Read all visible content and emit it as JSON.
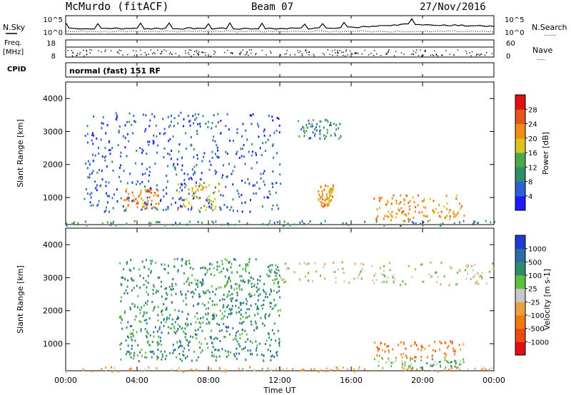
{
  "header": {
    "station": "McMurdo (fitACF)",
    "beam": "Beam 07",
    "date": "27/Nov/2016"
  },
  "side_labels": {
    "nsky": "N.Sky",
    "freq": "Freq.",
    "freq_unit": "[MHz]",
    "cpid": "CPID",
    "nsearch": "N.Search",
    "nave": "Nave",
    "dots": "......",
    "nave_dots": "...."
  },
  "noise_panel": {
    "left_ticks": [
      "10^5",
      "10^0"
    ],
    "right_ticks": [
      "10^5",
      "10^0"
    ]
  },
  "freq_panel": {
    "left_ticks": [
      "18",
      "8"
    ],
    "right_ticks": [
      "60",
      "0"
    ]
  },
  "cpid_panel": {
    "text": "normal (fast) 151 RF"
  },
  "x_axis": {
    "label": "Time UT",
    "ticks": [
      "00:00",
      "04:00",
      "08:00",
      "12:00",
      "16:00",
      "20:00",
      "00:00"
    ]
  },
  "chart_data": [
    {
      "type": "heatmap",
      "title": "Power",
      "ylabel": "Slant Range [km]",
      "xlabel": "",
      "ylim": [
        180,
        4500
      ],
      "xlim": [
        0,
        24
      ],
      "y_ticks": [
        "1000",
        "2000",
        "3000",
        "4000"
      ],
      "colorbar": {
        "label": "Power [dB]",
        "ticks": [
          "4",
          "8",
          "12",
          "16",
          "20",
          "24",
          "28"
        ],
        "range": [
          0,
          30
        ],
        "colors": [
          "#1c1cff",
          "#2f5fd0",
          "#2f8d6a",
          "#4aa84a",
          "#d9c41d",
          "#ef8d16",
          "#e5551e",
          "#e01010"
        ]
      },
      "regions": [
        {
          "t0": 0.0,
          "t1": 24.0,
          "r0": 180,
          "r1": 320,
          "level": 2
        },
        {
          "t0": 3.2,
          "t1": 5.2,
          "r0": 700,
          "r1": 1300,
          "level": 5
        },
        {
          "t0": 6.2,
          "t1": 8.6,
          "r0": 600,
          "r1": 1500,
          "level": 4
        },
        {
          "t0": 14.1,
          "t1": 15.0,
          "r0": 750,
          "r1": 1400,
          "level": 5
        },
        {
          "t0": 17.2,
          "t1": 22.3,
          "r0": 300,
          "r1": 1100,
          "level": 5
        },
        {
          "t0": 13.0,
          "t1": 15.4,
          "r0": 2800,
          "r1": 3400,
          "level": 2
        },
        {
          "t0": 1.0,
          "t1": 12.0,
          "r0": 600,
          "r1": 3600,
          "level": 1
        }
      ]
    },
    {
      "type": "heatmap",
      "title": "Velocity",
      "ylabel": "Slant Range [km]",
      "xlabel": "Time UT",
      "ylim": [
        180,
        4500
      ],
      "xlim": [
        0,
        24
      ],
      "y_ticks": [
        "1000",
        "2000",
        "3000",
        "4000"
      ],
      "colorbar": {
        "label": "Velocity [m s-1]",
        "ticks": [
          "1000",
          "500",
          "100",
          "25",
          "-25",
          "-100",
          "-500",
          "-1000"
        ],
        "colors": [
          "#1c3cd0",
          "#2f6aa8",
          "#2f8d6a",
          "#5fc040",
          "#c8c8c8",
          "#e8a040",
          "#f07a10",
          "#ee4a10",
          "#e01010"
        ]
      },
      "regions": [
        {
          "t0": 0.0,
          "t1": 24.0,
          "r0": 180,
          "r1": 320,
          "level": 5
        },
        {
          "t0": 3.0,
          "t1": 12.0,
          "r0": 500,
          "r1": 3600,
          "level": 2
        },
        {
          "t0": 17.2,
          "t1": 22.3,
          "r0": 600,
          "r1": 1100,
          "level": 6
        },
        {
          "t0": 17.2,
          "t1": 22.3,
          "r0": 300,
          "r1": 600,
          "level": 3
        },
        {
          "t0": 12.0,
          "t1": 24.0,
          "r0": 2800,
          "r1": 3500,
          "level": 4
        }
      ]
    }
  ]
}
